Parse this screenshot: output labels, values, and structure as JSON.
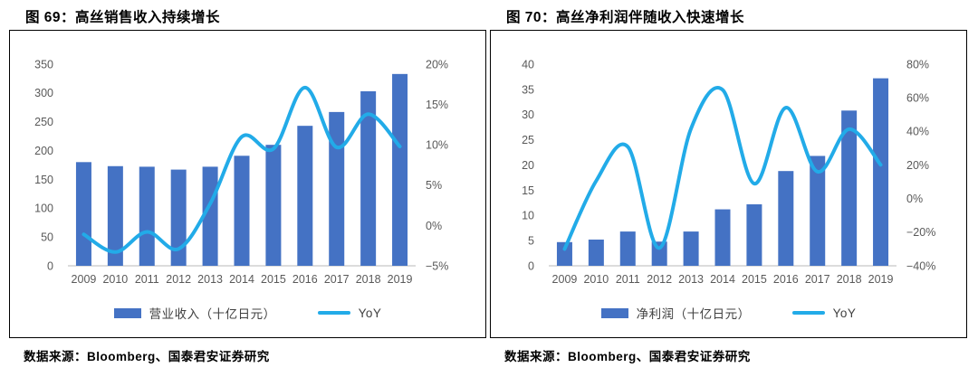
{
  "colors": {
    "bar": "#4472C4",
    "line": "#22ABE8",
    "axis_text": "#595959",
    "baseline": "#C8C8C8",
    "border": "#000000"
  },
  "chart_data": [
    {
      "type": "bar+line",
      "title": "图 69：高丝销售收入持续增长",
      "source": "数据来源：Bloomberg、国泰君安证券研究",
      "categories": [
        "2009",
        "2010",
        "2011",
        "2012",
        "2013",
        "2014",
        "2015",
        "2016",
        "2017",
        "2018",
        "2019"
      ],
      "series": [
        {
          "name": "营业收入（十亿日元）",
          "type": "bar",
          "axis": "left",
          "values": [
            180,
            173,
            172,
            167,
            172,
            191,
            210,
            243,
            267,
            303,
            333
          ]
        },
        {
          "name": "YoY",
          "type": "line",
          "axis": "right",
          "values": [
            -1.1,
            -3.3,
            -0.8,
            -2.9,
            2.7,
            11.0,
            9.5,
            17.1,
            9.7,
            13.8,
            9.8
          ]
        }
      ],
      "left_axis": {
        "min": 0,
        "max": 350,
        "step": 50,
        "suffix": ""
      },
      "right_axis": {
        "min": -5,
        "max": 20,
        "step": 5,
        "suffix": "%"
      },
      "grid": false,
      "legend_position": "bottom"
    },
    {
      "type": "bar+line",
      "title": "图 70：高丝净利润伴随收入快速增长",
      "source": "数据来源：Bloomberg、国泰君安证券研究",
      "categories": [
        "2009",
        "2010",
        "2011",
        "2012",
        "2013",
        "2014",
        "2015",
        "2016",
        "2017",
        "2018",
        "2019"
      ],
      "series": [
        {
          "name": "净利润（十亿日元）",
          "type": "bar",
          "axis": "left",
          "values": [
            4.7,
            5.2,
            6.8,
            4.8,
            6.8,
            11.2,
            12.2,
            18.8,
            21.8,
            30.8,
            37.2
          ]
        },
        {
          "name": "YoY",
          "type": "line",
          "axis": "right",
          "values": [
            -30,
            10.6,
            30.8,
            -29.4,
            41.7,
            64.7,
            8.9,
            54.1,
            16.0,
            41.3,
            20.1
          ]
        }
      ],
      "left_axis": {
        "min": 0,
        "max": 40,
        "step": 5,
        "suffix": ""
      },
      "right_axis": {
        "min": -40,
        "max": 80,
        "step": 20,
        "suffix": "%"
      },
      "grid": false,
      "legend_position": "bottom"
    }
  ]
}
